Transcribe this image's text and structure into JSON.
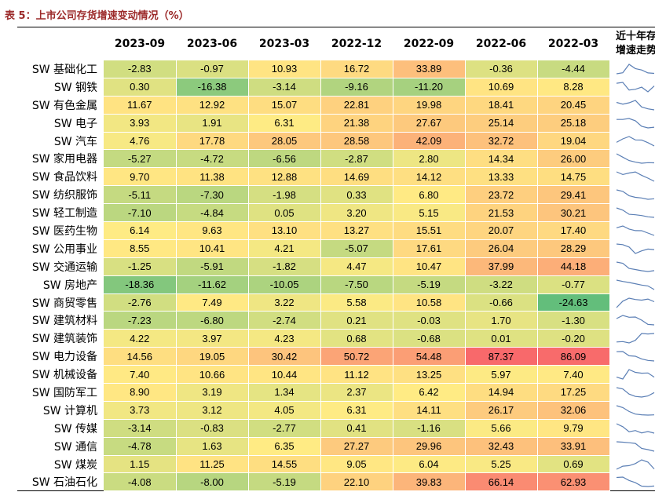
{
  "title": "表 5：上市公司存货增速变动情况（%）",
  "chart_data": {
    "type": "table",
    "columns": [
      "2023-09",
      "2023-06",
      "2023-03",
      "2022-12",
      "2022-09",
      "2022-06",
      "2022-03"
    ],
    "sparkline_header": [
      "近十年存货",
      "增速走势"
    ],
    "rows": [
      {
        "name": "SW 基础化工",
        "values": [
          -2.83,
          -0.97,
          10.93,
          16.72,
          33.89,
          -0.36,
          -4.44
        ]
      },
      {
        "name": "SW 钢铁",
        "values": [
          0.3,
          -16.38,
          -3.14,
          -9.16,
          -11.2,
          10.69,
          8.28
        ]
      },
      {
        "name": "SW 有色金属",
        "values": [
          11.67,
          12.92,
          15.07,
          22.81,
          19.98,
          18.41,
          20.45
        ]
      },
      {
        "name": "SW 电子",
        "values": [
          3.93,
          1.91,
          6.31,
          21.38,
          27.67,
          25.14,
          25.18
        ]
      },
      {
        "name": "SW 汽车",
        "values": [
          4.76,
          17.78,
          28.05,
          28.58,
          42.09,
          32.72,
          19.04
        ]
      },
      {
        "name": "SW 家用电器",
        "values": [
          -5.27,
          -4.72,
          -6.56,
          -2.87,
          2.8,
          14.34,
          26.0
        ]
      },
      {
        "name": "SW 食品饮料",
        "values": [
          9.7,
          11.38,
          12.88,
          14.69,
          14.12,
          13.33,
          14.75
        ]
      },
      {
        "name": "SW 纺织服饰",
        "values": [
          -5.11,
          -7.3,
          -1.98,
          0.33,
          6.8,
          23.72,
          29.41
        ]
      },
      {
        "name": "SW 轻工制造",
        "values": [
          -7.1,
          -4.84,
          0.05,
          3.2,
          5.15,
          21.53,
          30.21
        ]
      },
      {
        "name": "SW 医药生物",
        "values": [
          6.14,
          9.63,
          13.1,
          13.27,
          15.51,
          20.07,
          17.4
        ]
      },
      {
        "name": "SW 公用事业",
        "values": [
          8.55,
          10.41,
          4.21,
          -5.07,
          17.61,
          26.04,
          28.29
        ]
      },
      {
        "name": "SW 交通运输",
        "values": [
          -1.25,
          -5.91,
          -1.82,
          4.47,
          10.47,
          37.99,
          44.18
        ]
      },
      {
        "name": "SW 房地产",
        "values": [
          -18.36,
          -11.62,
          -10.05,
          -7.5,
          -5.19,
          -3.22,
          -0.77
        ]
      },
      {
        "name": "SW 商贸零售",
        "values": [
          -2.76,
          7.49,
          3.22,
          5.58,
          10.58,
          -0.66,
          -24.63
        ]
      },
      {
        "name": "SW 建筑材料",
        "values": [
          -7.23,
          -6.8,
          -2.74,
          0.21,
          -0.03,
          1.7,
          -1.3
        ]
      },
      {
        "name": "SW 建筑装饰",
        "values": [
          4.22,
          3.97,
          4.23,
          0.68,
          -0.68,
          0.01,
          -0.2
        ]
      },
      {
        "name": "SW 电力设备",
        "values": [
          14.56,
          19.05,
          30.42,
          50.72,
          54.48,
          87.37,
          86.09
        ]
      },
      {
        "name": "SW 机械设备",
        "values": [
          7.4,
          10.66,
          10.44,
          11.12,
          13.25,
          5.97,
          7.4
        ]
      },
      {
        "name": "SW 国防军工",
        "values": [
          8.9,
          3.19,
          1.34,
          2.37,
          6.42,
          14.94,
          17.25
        ]
      },
      {
        "name": "SW 计算机",
        "values": [
          3.73,
          3.12,
          4.05,
          6.31,
          14.11,
          26.17,
          32.06
        ]
      },
      {
        "name": "SW 传媒",
        "values": [
          -3.14,
          -0.83,
          -2.77,
          0.41,
          -1.16,
          5.66,
          9.79
        ]
      },
      {
        "name": "SW 通信",
        "values": [
          -4.78,
          1.63,
          6.35,
          27.27,
          29.96,
          32.43,
          33.91
        ]
      },
      {
        "name": "SW 煤炭",
        "values": [
          1.15,
          11.25,
          14.55,
          9.05,
          6.04,
          5.25,
          0.69
        ]
      },
      {
        "name": "SW 石油石化",
        "values": [
          -4.08,
          -8.0,
          -5.19,
          22.1,
          39.83,
          66.14,
          62.93
        ]
      }
    ],
    "color_scale": {
      "min_color": "#63be7b",
      "mid_color": "#ffeb84",
      "max_color": "#f8696b"
    },
    "sparkline_color": "#5b7fb5"
  }
}
